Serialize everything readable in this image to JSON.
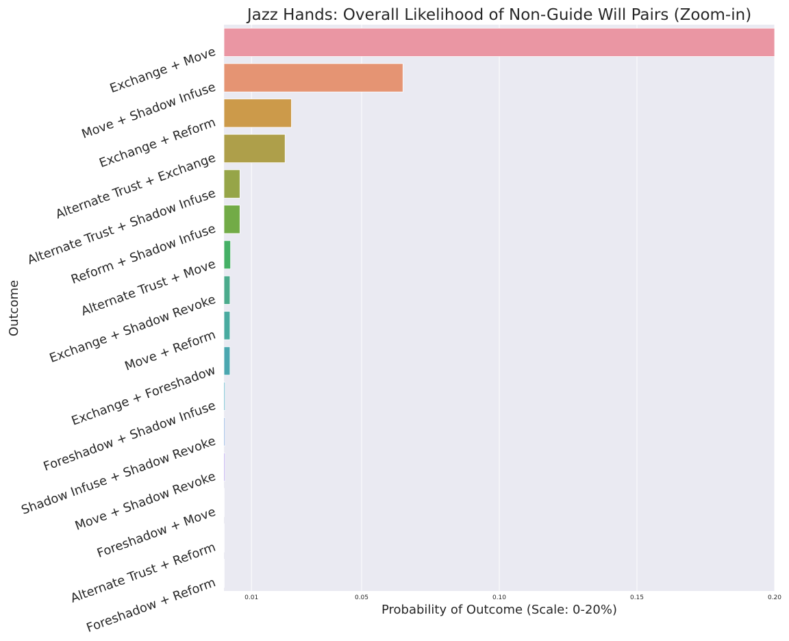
{
  "chart_data": {
    "type": "bar",
    "orientation": "horizontal",
    "title": "Jazz Hands: Overall Likelihood of Non-Guide Will Pairs (Zoom-in)",
    "xlabel": "Probability of Outcome (Scale: 0-20%)",
    "ylabel": "Outcome",
    "xlim": [
      0,
      0.2
    ],
    "xticks": [
      {
        "value": 0.01,
        "label": "0.01"
      },
      {
        "value": 0.05,
        "label": "0.05"
      },
      {
        "value": 0.1,
        "label": "0.10"
      },
      {
        "value": 0.15,
        "label": "0.15"
      },
      {
        "value": 0.2,
        "label": "0.20"
      }
    ],
    "grid": true,
    "categories": [
      "Exchange + Move",
      "Move + Shadow Infuse",
      "Exchange + Reform",
      "Alternate Trust + Exchange",
      "Alternate Trust + Shadow Infuse",
      "Reform + Shadow Infuse",
      "Alternate Trust + Move",
      "Exchange + Shadow Revoke",
      "Move + Reform",
      "Exchange + Foreshadow",
      "Foreshadow + Shadow Infuse",
      "Shadow Infuse + Shadow Revoke",
      "Move + Shadow Revoke",
      "Foreshadow + Move",
      "Alternate Trust + Reform",
      "Foreshadow + Reform"
    ],
    "values": [
      0.2,
      0.065,
      0.0245,
      0.0222,
      0.0058,
      0.0058,
      0.0024,
      0.0022,
      0.0022,
      0.0022,
      0.0004,
      0.0004,
      0.0004,
      0.0001,
      0.0001,
      0.0001
    ],
    "colors": [
      "#ea96a3",
      "#e59473",
      "#cc9a4a",
      "#ae9f4a",
      "#96a548",
      "#72ab47",
      "#45b065",
      "#4bab8c",
      "#49aba0",
      "#4ba7b0",
      "#4ea6c1",
      "#7aa0d9",
      "#a994e6",
      "#d98be5",
      "#e889c9",
      "#eb8cb1"
    ]
  }
}
